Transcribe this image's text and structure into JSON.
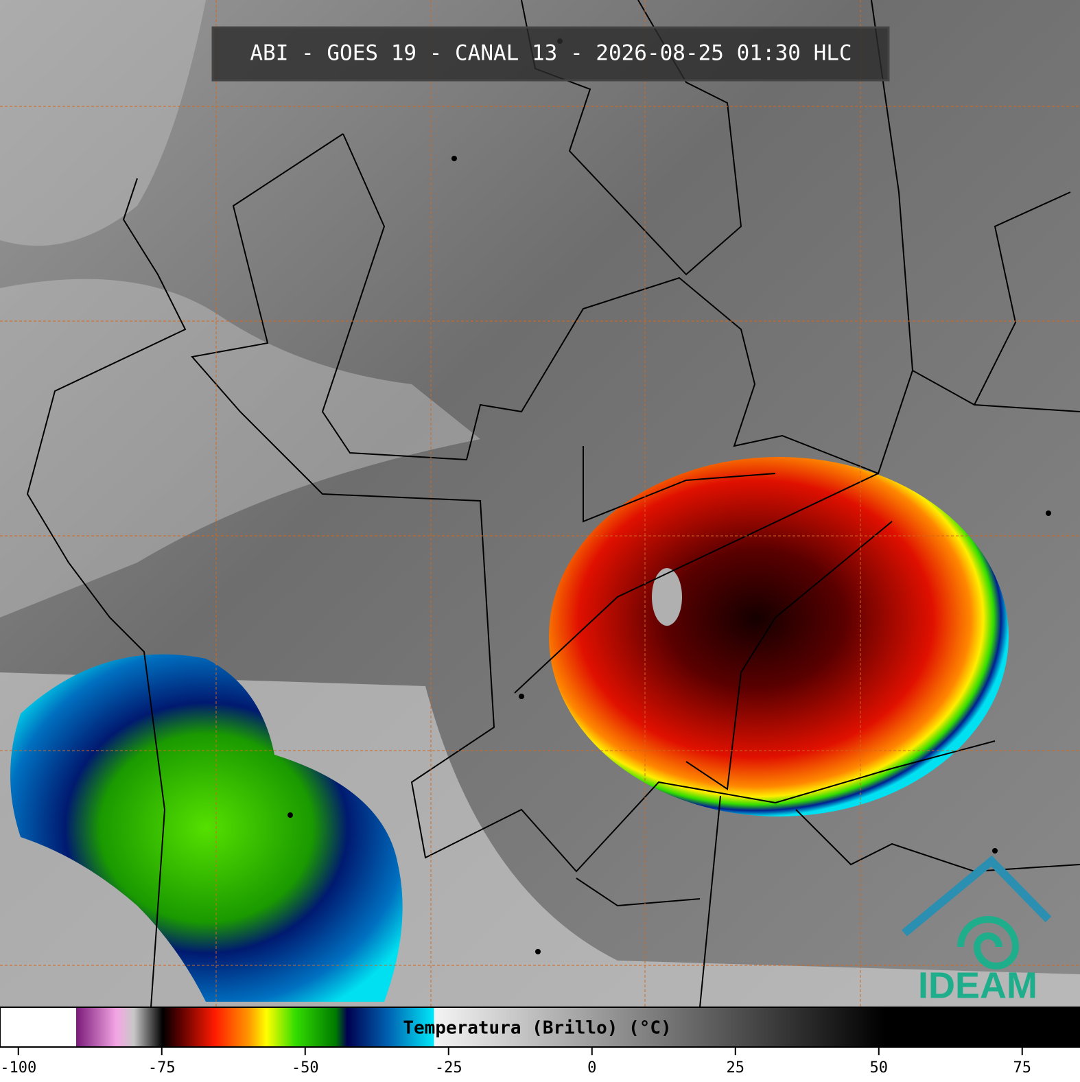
{
  "title": "ABI - GOES 19 - CANAL 13 - 2026-08-25 01:30 HLC",
  "colorbar": {
    "label": "Temperatura (Brillo) (°C)",
    "clim": [
      -103.2,
      84
    ],
    "ticks": [
      -100,
      -75,
      -50,
      -25,
      0,
      25,
      50,
      75
    ],
    "colormap": [
      {
        "value": -103.2,
        "color": "#ffffff"
      },
      {
        "value": -90,
        "color": "#ffffff"
      },
      {
        "value": -90,
        "color": "#7a1a7a"
      },
      {
        "value": -83,
        "color": "#f4a6e4"
      },
      {
        "value": -80,
        "color": "#c8c8c8"
      },
      {
        "value": -75,
        "color": "#000000"
      },
      {
        "value": -72,
        "color": "#5a0000"
      },
      {
        "value": -66,
        "color": "#ff1a00"
      },
      {
        "value": -60,
        "color": "#ff9900"
      },
      {
        "value": -57,
        "color": "#ffff00"
      },
      {
        "value": -52,
        "color": "#33dd00"
      },
      {
        "value": -45,
        "color": "#007a00"
      },
      {
        "value": -43,
        "color": "#000050"
      },
      {
        "value": -36,
        "color": "#0060b0"
      },
      {
        "value": -28,
        "color": "#00e8f8"
      },
      {
        "value": -28,
        "color": "#f4f4f4"
      },
      {
        "value": 50,
        "color": "#000000"
      },
      {
        "value": 84,
        "color": "#000000"
      }
    ]
  },
  "logo": "IDEAM"
}
